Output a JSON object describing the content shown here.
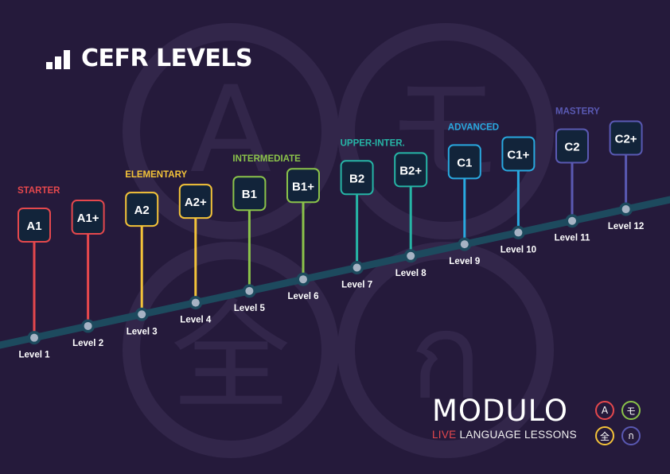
{
  "title": "CEFR LEVELS",
  "brand": {
    "name": "MODULO",
    "tagline_highlight": "LIVE",
    "tagline_rest": " LANGUAGE LESSONS",
    "glyphs": [
      "A",
      "モ",
      "全",
      "ก"
    ]
  },
  "groups": [
    {
      "name": "STARTER",
      "color": "#e5484d"
    },
    {
      "name": "ELEMENTARY",
      "color": "#f4c339"
    },
    {
      "name": "INTERMEDIATE",
      "color": "#8bc34a"
    },
    {
      "name": "UPPER-INTER.",
      "color": "#26b5a6"
    },
    {
      "name": "ADVANCED",
      "color": "#29a9e0"
    },
    {
      "name": "MASTERY",
      "color": "#5a59b3"
    }
  ],
  "levels": [
    {
      "code": "A1",
      "label": "Level 1"
    },
    {
      "code": "A1+",
      "label": "Level 2"
    },
    {
      "code": "A2",
      "label": "Level 3"
    },
    {
      "code": "A2+",
      "label": "Level 4"
    },
    {
      "code": "B1",
      "label": "Level 5"
    },
    {
      "code": "B1+",
      "label": "Level 6"
    },
    {
      "code": "B2",
      "label": "Level 7"
    },
    {
      "code": "B2+",
      "label": "Level 8"
    },
    {
      "code": "C1",
      "label": "Level 9"
    },
    {
      "code": "C1+",
      "label": "Level 10"
    },
    {
      "code": "C2",
      "label": "Level 11"
    },
    {
      "code": "C2+",
      "label": "Level 12"
    }
  ]
}
